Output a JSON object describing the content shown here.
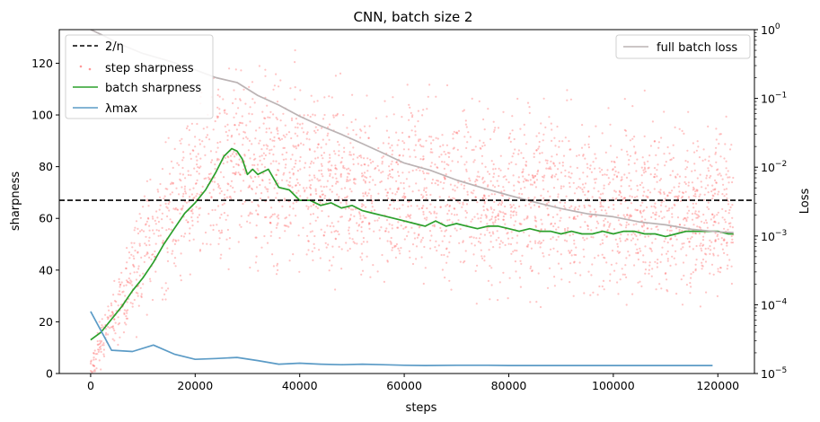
{
  "chart_data": {
    "type": "line",
    "title": "CNN, batch size 2",
    "xlabel": "steps",
    "ylabel": "sharpness",
    "y2label": "Loss",
    "xlim": [
      -6000,
      127000
    ],
    "ylim": [
      0,
      133
    ],
    "y2lim_log": [
      -5,
      0
    ],
    "x_ticks": [
      0,
      20000,
      40000,
      60000,
      80000,
      100000,
      120000
    ],
    "x_tick_labels": [
      "0",
      "20000",
      "40000",
      "60000",
      "80000",
      "100000",
      "120000"
    ],
    "y_ticks": [
      0,
      20,
      40,
      60,
      80,
      100,
      120
    ],
    "y_tick_labels": [
      "0",
      "20",
      "40",
      "60",
      "80",
      "100",
      "120"
    ],
    "y2_ticks": [
      {
        "exp": 0,
        "base": "10",
        "power": "0"
      },
      {
        "exp": -1,
        "base": "10",
        "power": "−1"
      },
      {
        "exp": -2,
        "base": "10",
        "power": "−2"
      },
      {
        "exp": -3,
        "base": "10",
        "power": "−3"
      },
      {
        "exp": -4,
        "base": "10",
        "power": "−4"
      },
      {
        "exp": -5,
        "base": "10",
        "power": "−5"
      }
    ],
    "threshold": {
      "name": "2/η",
      "value": 67,
      "color": "#000000"
    },
    "legend_left": {
      "placement": "upper-left",
      "entries": [
        {
          "label": "2/η",
          "style": "dashed",
          "color": "#000000"
        },
        {
          "label": "step sharpness",
          "style": "points",
          "color": "#ff5555"
        },
        {
          "label": "batch sharpness",
          "style": "line",
          "color": "#2ca02c"
        },
        {
          "label": "λmax",
          "style": "line",
          "color": "#5b9bc6"
        }
      ]
    },
    "legend_right": {
      "placement": "upper-right",
      "entries": [
        {
          "label": "full batch loss",
          "style": "line",
          "color": "#bbb3b4"
        }
      ]
    },
    "series": [
      {
        "name": "batch sharpness",
        "axis": "left",
        "color": "#2ca02c",
        "x": [
          0,
          2000,
          4000,
          6000,
          8000,
          10000,
          12000,
          14000,
          16000,
          18000,
          20000,
          22000,
          24000,
          25500,
          27000,
          28000,
          29000,
          30000,
          31000,
          32000,
          34000,
          36000,
          38000,
          40000,
          42000,
          44000,
          46000,
          48000,
          50000,
          52000,
          54000,
          56000,
          58000,
          60000,
          62000,
          64000,
          66000,
          68000,
          70000,
          72000,
          74000,
          76000,
          78000,
          80000,
          82000,
          84000,
          86000,
          88000,
          90000,
          92000,
          94000,
          96000,
          98000,
          100000,
          102000,
          104000,
          106000,
          108000,
          110000,
          112000,
          114000,
          116000,
          118000,
          120000,
          122000,
          123000
        ],
        "values": [
          13,
          16,
          21,
          26,
          32,
          37,
          43,
          50,
          56,
          62,
          66,
          71,
          78,
          84,
          87,
          86,
          83,
          77,
          79,
          77,
          79,
          72,
          71,
          67,
          67,
          65,
          66,
          64,
          65,
          63,
          62,
          61,
          60,
          59,
          58,
          57,
          59,
          57,
          58,
          57,
          56,
          57,
          57,
          56,
          55,
          56,
          55,
          55,
          54,
          55,
          54,
          54,
          55,
          54,
          55,
          55,
          54,
          54,
          53,
          54,
          55,
          55,
          55,
          55,
          54,
          54
        ]
      },
      {
        "name": "λmax",
        "axis": "left",
        "color": "#5b9bc6",
        "x": [
          0,
          4000,
          8000,
          12000,
          16000,
          20000,
          24000,
          28000,
          32000,
          36000,
          40000,
          44000,
          48000,
          52000,
          56000,
          60000,
          64000,
          70000,
          76000,
          80000,
          88000,
          96000,
          104000,
          112000,
          119000
        ],
        "values": [
          24,
          9,
          8.5,
          11,
          7.5,
          5.5,
          5.8,
          6.2,
          5,
          3.6,
          4,
          3.6,
          3.4,
          3.6,
          3.4,
          3.2,
          3.1,
          3.2,
          3.2,
          3.1,
          3.1,
          3.1,
          3.1,
          3.1,
          3.1
        ]
      },
      {
        "name": "full batch loss",
        "axis": "right",
        "log_scale": true,
        "color": "#bbb3b4",
        "x": [
          0,
          2000,
          6000,
          10000,
          15000,
          20000,
          24000,
          28000,
          32000,
          36000,
          40000,
          44000,
          48000,
          52000,
          56000,
          60000,
          65000,
          70000,
          75000,
          80000,
          85000,
          90000,
          95000,
          100000,
          105000,
          110000,
          115000,
          120000,
          123000
        ],
        "values": [
          1.0,
          0.85,
          0.6,
          0.45,
          0.35,
          0.26,
          0.2,
          0.17,
          0.11,
          0.08,
          0.055,
          0.04,
          0.03,
          0.022,
          0.016,
          0.0115,
          0.009,
          0.0065,
          0.005,
          0.0039,
          0.0031,
          0.0025,
          0.0021,
          0.0019,
          0.0016,
          0.00145,
          0.00125,
          0.00115,
          0.00112
        ]
      },
      {
        "name": "step sharpness",
        "axis": "left",
        "style": "points",
        "color": "#ff5555",
        "point_count": 3000,
        "density_bands": [
          {
            "x": 0,
            "low": 0,
            "high": 5
          },
          {
            "x": 2000,
            "low": 0,
            "high": 25
          },
          {
            "x": 5000,
            "low": 5,
            "high": 40
          },
          {
            "x": 10000,
            "low": 10,
            "high": 85
          },
          {
            "x": 20000,
            "low": 25,
            "high": 120
          },
          {
            "x": 30000,
            "low": 30,
            "high": 133
          },
          {
            "x": 50000,
            "low": 25,
            "high": 120
          },
          {
            "x": 80000,
            "low": 20,
            "high": 115
          },
          {
            "x": 123000,
            "low": 15,
            "high": 110
          }
        ]
      }
    ]
  }
}
